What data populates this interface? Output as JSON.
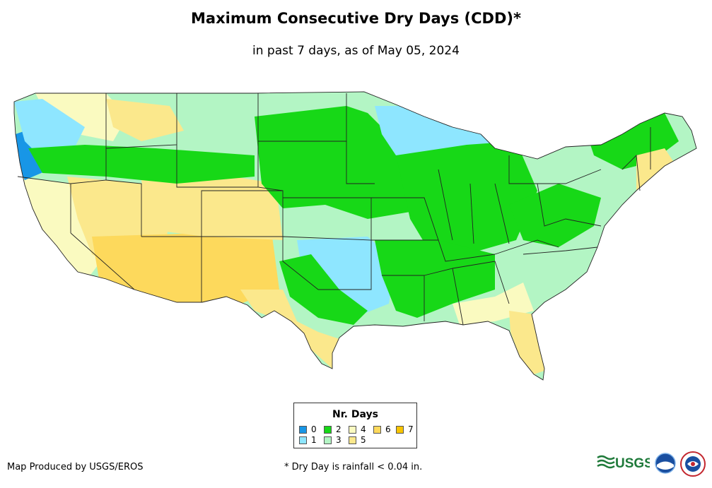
{
  "title": "Maximum Consecutive Dry Days (CDD)*",
  "subtitle": "in past 7 days, as of May 05, 2024",
  "legend": {
    "title": "Nr. Days",
    "items": [
      {
        "label": "0",
        "color": "#1896e6"
      },
      {
        "label": "1",
        "color": "#8ee6ff"
      },
      {
        "label": "2",
        "color": "#17d817"
      },
      {
        "label": "3",
        "color": "#b3f5c4"
      },
      {
        "label": "4",
        "color": "#fafac0"
      },
      {
        "label": "5",
        "color": "#fbe88c"
      },
      {
        "label": "6",
        "color": "#fdd95c"
      },
      {
        "label": "7",
        "color": "#f8c400"
      }
    ]
  },
  "credit": "Map Produced by USGS/EROS",
  "footnote": "* Dry Day is rainfall < 0.04 in.",
  "logos": {
    "usgs_text": "USGS"
  }
}
